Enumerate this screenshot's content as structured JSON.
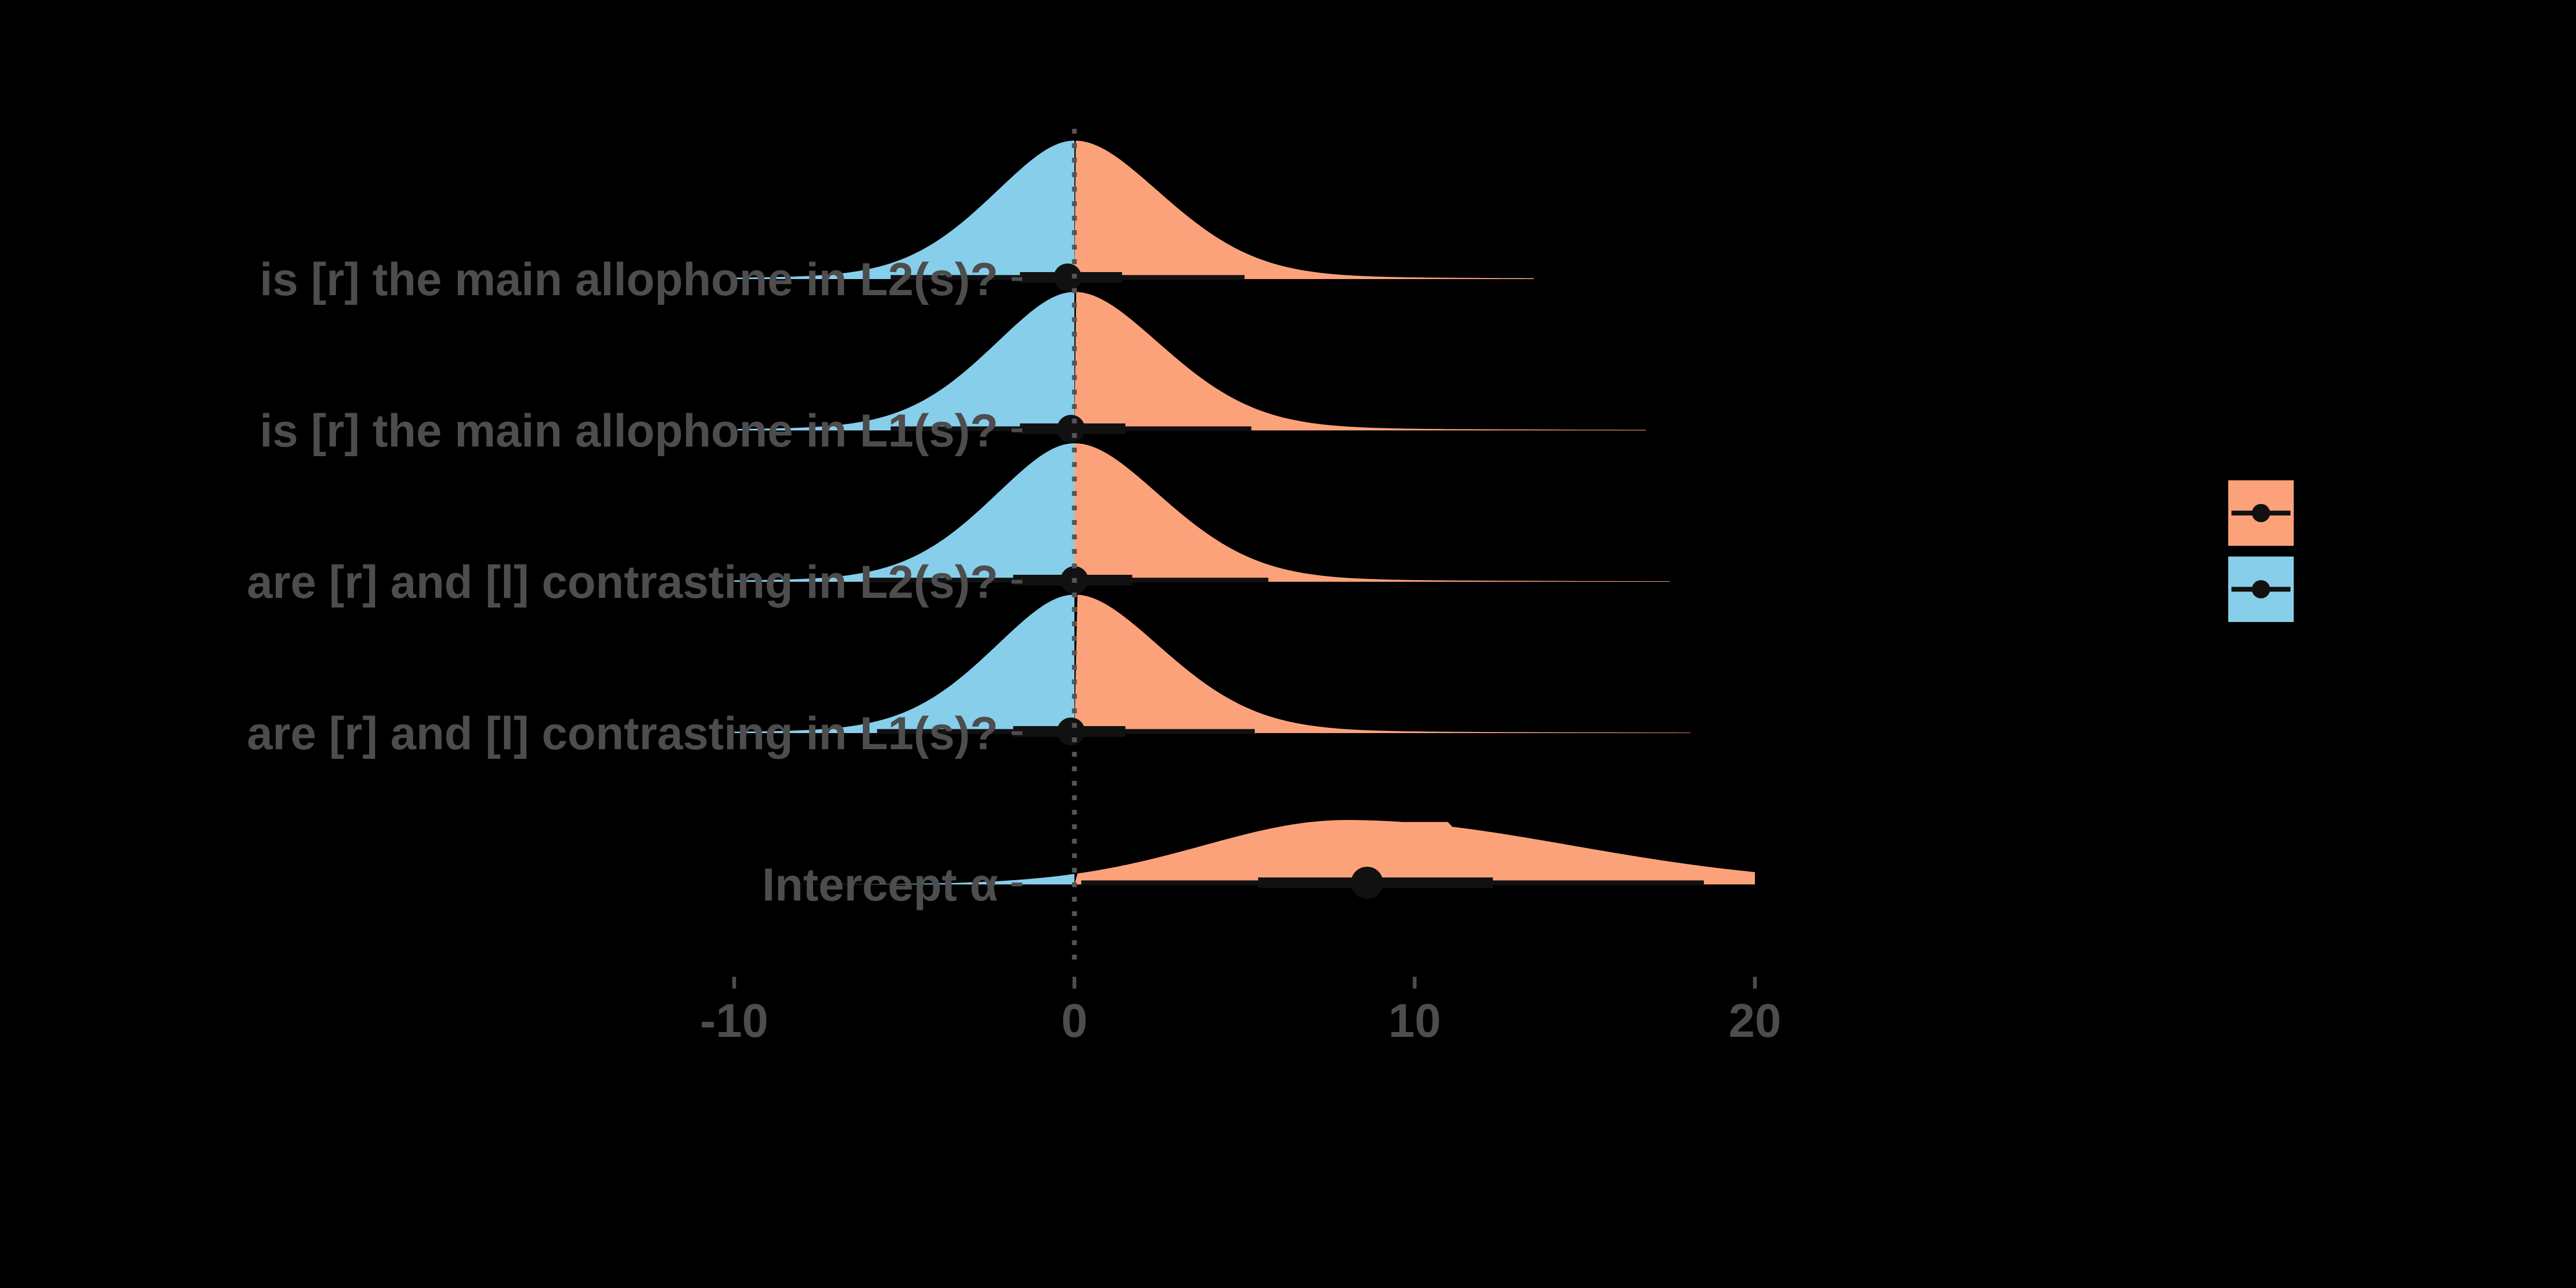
{
  "chart_data": {
    "type": "ridgeline-halfeye",
    "title": "",
    "xlabel": "",
    "ylabel": "",
    "xlim": [
      -10,
      20
    ],
    "x_ticks": [
      -10,
      0,
      10,
      20
    ],
    "x_tick_labels": [
      "-10",
      "0",
      "10",
      "20"
    ],
    "reference_line_x": 0,
    "grid": false,
    "legend": {
      "placement": "right",
      "entries": [
        {
          "fill": "#FCA27A",
          "label": ""
        },
        {
          "fill": "#87CEEB",
          "label": ""
        }
      ]
    },
    "colors": {
      "positive": "#FCA27A",
      "negative": "#87CEEB",
      "background": "#000000",
      "text": "#4d4d4d",
      "interval": "#111111"
    },
    "parameters": [
      {
        "label": "is [r] the main allophone in L2(s)?",
        "median": -0.2,
        "interval_66": [
          -1.6,
          1.4
        ],
        "interval_95": [
          -5.4,
          5.0
        ],
        "density_range": [
          -10,
          13.5
        ],
        "peak_x": 0
      },
      {
        "label": "is [r] the main allophone in L1(s)?",
        "median": -0.1,
        "interval_66": [
          -1.6,
          1.5
        ],
        "interval_95": [
          -5.4,
          5.2
        ],
        "density_range": [
          -9.9,
          16.8
        ],
        "peak_x": 0
      },
      {
        "label": "are [r] and [l] contrasting in L2(s)?",
        "median": 0.0,
        "interval_66": [
          -1.8,
          1.7
        ],
        "interval_95": [
          -6.1,
          5.7
        ],
        "density_range": [
          -10,
          17.5
        ],
        "peak_x": 0
      },
      {
        "label": "are [r] and [l] contrasting in L1(s)?",
        "median": -0.1,
        "interval_66": [
          -1.8,
          1.5
        ],
        "interval_95": [
          -5.8,
          5.3
        ],
        "density_range": [
          -10,
          18.1
        ],
        "peak_x": 0
      },
      {
        "label": "Intercept α",
        "median": 8.6,
        "interval_66": [
          5.4,
          12.3
        ],
        "interval_95": [
          0.2,
          18.5
        ],
        "density_range": [
          -9.2,
          20
        ],
        "peak_x": 8.0
      }
    ]
  }
}
